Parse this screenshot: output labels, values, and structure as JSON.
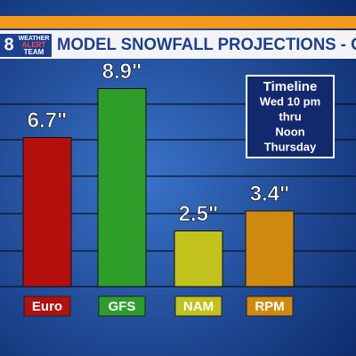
{
  "logo": {
    "number": "8",
    "lines": [
      "WEATHER",
      "ALERT",
      "TEAM"
    ]
  },
  "chart_data": {
    "type": "bar",
    "title": "MODEL SNOWFALL PROJECTIONS - OM",
    "categories": [
      "Euro",
      "GFS",
      "NAM",
      "RPM"
    ],
    "values": [
      6.7,
      8.9,
      2.5,
      3.4
    ],
    "value_labels": [
      "6.7\"",
      "8.9\"",
      "2.5\"",
      "3.4\""
    ],
    "colors": [
      "#b3100e",
      "#2e9e2a",
      "#c2c21c",
      "#d0890f"
    ],
    "ylim": [
      0,
      10
    ],
    "annotation": [
      "Timeline",
      "Wed 10 pm",
      "thru",
      "Noon",
      "Thursday"
    ]
  }
}
